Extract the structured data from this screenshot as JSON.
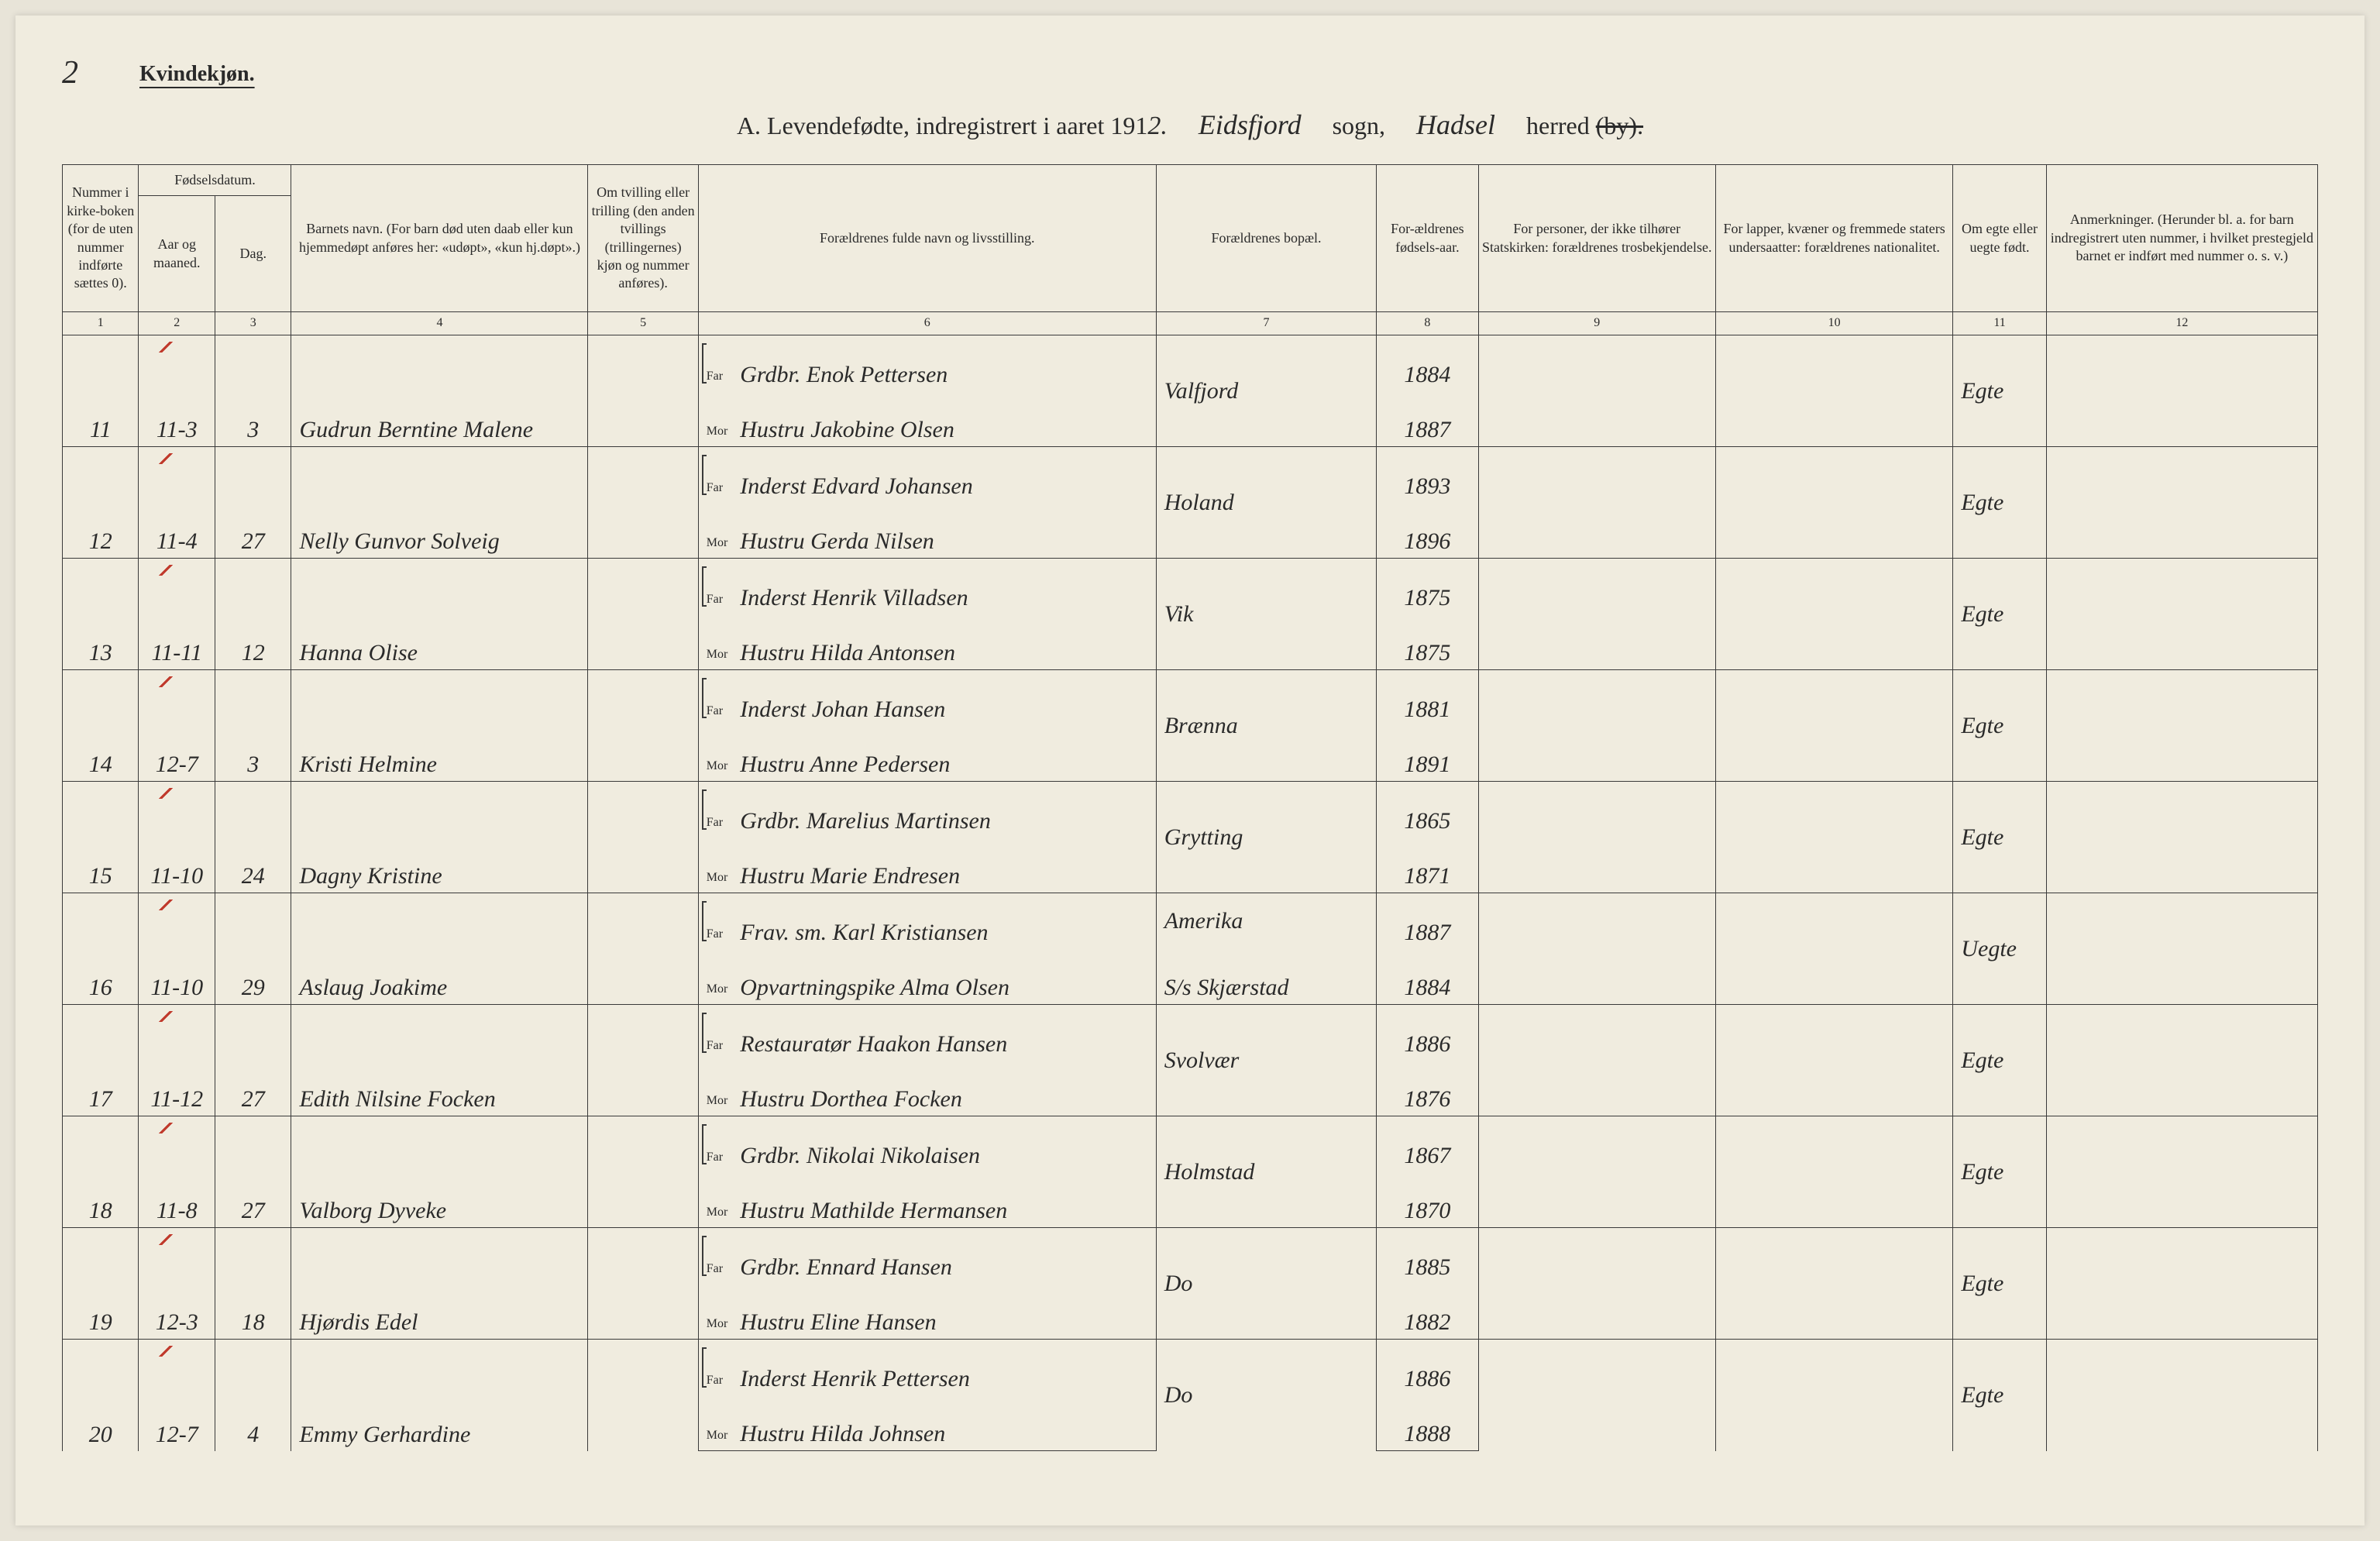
{
  "page_number": "2",
  "gender_label": "Kvindekjøn.",
  "title": {
    "prefix": "A.  Levendefødte, indregistrert i aaret 191",
    "year_suffix": "2.",
    "sogn_value": "Eidsfjord",
    "sogn_label": "sogn,",
    "herred_value": "Hadsel",
    "herred_label_pre": "herred ",
    "herred_label_strike": "(by)."
  },
  "headers": {
    "c1": "Nummer i kirke-boken (for de uten nummer indførte sættes 0).",
    "c2a": "Fødselsdatum.",
    "c2": "Aar og maaned.",
    "c3": "Dag.",
    "c4": "Barnets navn.\n(For barn død uten daab eller kun hjemmedøpt anføres her: «udøpt», «kun hj.døpt».)",
    "c5": "Om tvilling eller trilling (den anden tvillings (trillingernes) kjøn og nummer anføres).",
    "c6": "Forældrenes fulde navn og livsstilling.",
    "c7": "Forældrenes bopæl.",
    "c8": "For-ældrenes fødsels-aar.",
    "c9": "For personer, der ikke tilhører Statskirken: forældrenes trosbekjendelse.",
    "c10": "For lapper, kvæner og fremmede staters undersaatter: forældrenes nationalitet.",
    "c11": "Om egte eller uegte født.",
    "c12": "Anmerkninger.\n(Herunder bl. a. for barn indregistrert uten nummer, i hvilket prestegjeld barnet er indført med nummer o. s. v.)"
  },
  "colnums": [
    "1",
    "2",
    "3",
    "4",
    "5",
    "6",
    "7",
    "8",
    "9",
    "10",
    "11",
    "12"
  ],
  "far_label": "Far",
  "mor_label": "Mor",
  "rows": [
    {
      "num": "11",
      "month": "11-3",
      "day": "3",
      "name": "Gudrun Berntine Malene",
      "far": "Grdbr. Enok Pettersen",
      "mor": "Hustru Jakobine Olsen",
      "bopel": "Valfjord",
      "far_aar": "1884",
      "mor_aar": "1887",
      "egte": "Egte",
      "tick": true
    },
    {
      "num": "12",
      "month": "11-4",
      "day": "27",
      "name": "Nelly Gunvor Solveig",
      "far": "Inderst Edvard Johansen",
      "mor": "Hustru Gerda Nilsen",
      "bopel": "Holand",
      "far_aar": "1893",
      "mor_aar": "1896",
      "egte": "Egte",
      "tick": true
    },
    {
      "num": "13",
      "month": "11-11",
      "day": "12",
      "name": "Hanna Olise",
      "far": "Inderst Henrik Villadsen",
      "mor": "Hustru Hilda Antonsen",
      "bopel": "Vik",
      "far_aar": "1875",
      "mor_aar": "1875",
      "egte": "Egte",
      "tick": true
    },
    {
      "num": "14",
      "month": "12-7",
      "day": "3",
      "name": "Kristi Helmine",
      "far": "Inderst Johan Hansen",
      "mor": "Hustru Anne Pedersen",
      "bopel": "Brænna",
      "far_aar": "1881",
      "mor_aar": "1891",
      "egte": "Egte",
      "tick": true
    },
    {
      "num": "15",
      "month": "11-10",
      "day": "24",
      "name": "Dagny Kristine",
      "far": "Grdbr. Marelius Martinsen",
      "mor": "Hustru Marie Endresen",
      "bopel": "Grytting",
      "far_aar": "1865",
      "mor_aar": "1871",
      "egte": "Egte",
      "tick": true
    },
    {
      "num": "16",
      "month": "11-10",
      "day": "29",
      "name": "Aslaug Joakime",
      "far": "Frav. sm. Karl Kristiansen",
      "mor": "Opvartningspike Alma Olsen",
      "bopel": "Amerika",
      "bopel2": "S/s Skjærstad",
      "far_aar": "1887",
      "mor_aar": "1884",
      "egte": "Uegte",
      "tick": true,
      "blue_mark": true
    },
    {
      "num": "17",
      "month": "11-12",
      "day": "27",
      "name": "Edith Nilsine Focken",
      "far": "Restauratør Haakon Hansen",
      "mor": "Hustru Dorthea Focken",
      "bopel": "Svolvær",
      "far_aar": "1886",
      "mor_aar": "1876",
      "egte": "Egte",
      "tick": true
    },
    {
      "num": "18",
      "month": "11-8",
      "day": "27",
      "name": "Valborg Dyveke",
      "far": "Grdbr. Nikolai Nikolaisen",
      "mor": "Hustru Mathilde Hermansen",
      "bopel": "Holmstad",
      "far_aar": "1867",
      "mor_aar": "1870",
      "egte": "Egte",
      "tick": true
    },
    {
      "num": "19",
      "month": "12-3",
      "day": "18",
      "name": "Hjørdis Edel",
      "far": "Grdbr. Ennard Hansen",
      "mor": "Hustru Eline Hansen",
      "bopel": "Do",
      "far_aar": "1885",
      "mor_aar": "1882",
      "egte": "Egte",
      "tick": true
    },
    {
      "num": "20",
      "month": "12-7",
      "day": "4",
      "name": "Emmy Gerhardine",
      "far": "Inderst Henrik Pettersen",
      "mor": "Hustru Hilda Johnsen",
      "bopel": "Do",
      "far_aar": "1886",
      "mor_aar": "1888",
      "egte": "Egte",
      "tick": true
    }
  ]
}
